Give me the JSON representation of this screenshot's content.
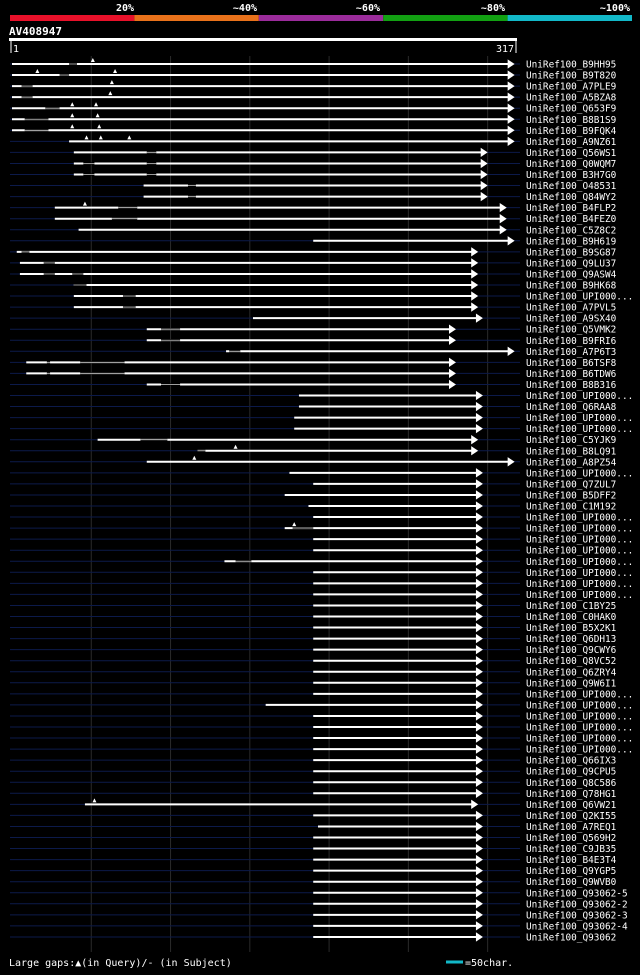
{
  "header": {
    "title": "AV408947",
    "scale_labels": [
      "20%",
      "~40%",
      "~60%",
      "~80%",
      "~100%"
    ],
    "scale_colors": [
      "#e8112a",
      "#e8711a",
      "#9b2c9b",
      "#12a012",
      "#12b8c8"
    ]
  },
  "footer": {
    "gaps_text": "Large gaps:▲(in Query)/- (in Subject)",
    "legend_text": "=50char.",
    "legend_color": "#12b8c8"
  },
  "chart_data": {
    "type": "alignment",
    "query_id": "AV408947",
    "query_length": 317,
    "axis_start": "1",
    "axis_end": "317",
    "hits": [
      {
        "id": "UniRef100_B9HH95",
        "start": 1,
        "end": 317,
        "identity": "80%",
        "gaps": [
          [
            37,
            42
          ]
        ],
        "query_gaps": [
          52
        ]
      },
      {
        "id": "UniRef100_B9T820",
        "start": 1,
        "end": 317,
        "identity": "80%",
        "gaps": [
          [
            31,
            37
          ]
        ],
        "query_gaps": [
          17,
          66
        ]
      },
      {
        "id": "UniRef100_A7PLE9",
        "start": 1,
        "end": 317,
        "identity": "80%",
        "gaps": [
          [
            7,
            14
          ]
        ],
        "query_gaps": [
          64
        ]
      },
      {
        "id": "UniRef100_A5BZA8",
        "start": 1,
        "end": 317,
        "identity": "80%",
        "gaps": [
          [
            7,
            14
          ]
        ],
        "query_gaps": [
          63
        ]
      },
      {
        "id": "UniRef100_Q653F9",
        "start": 1,
        "end": 317,
        "identity": "60%",
        "gaps": [
          [
            22,
            31
          ]
        ],
        "query_gaps": [
          39,
          54
        ]
      },
      {
        "id": "UniRef100_B8B1S9",
        "start": 1,
        "end": 317,
        "identity": "60%",
        "gaps": [
          [
            9,
            24
          ]
        ],
        "query_gaps": [
          39,
          55
        ]
      },
      {
        "id": "UniRef100_B9FQK4",
        "start": 1,
        "end": 317,
        "identity": "60%",
        "gaps": [
          [
            9,
            24
          ]
        ],
        "query_gaps": [
          39,
          56
        ]
      },
      {
        "id": "UniRef100_A9NZ61",
        "start": 37,
        "end": 317,
        "identity": "60%",
        "gaps": [],
        "query_gaps": [
          48,
          57,
          75
        ]
      },
      {
        "id": "UniRef100_Q56WS1",
        "start": 40,
        "end": 300,
        "identity": "80%",
        "gaps": [
          [
            86,
            92
          ]
        ],
        "query_gaps": []
      },
      {
        "id": "UniRef100_Q0WQM7",
        "start": 40,
        "end": 300,
        "identity": "80%",
        "gaps": [
          [
            46,
            53
          ],
          [
            86,
            92
          ]
        ],
        "query_gaps": []
      },
      {
        "id": "UniRef100_B3H7G0",
        "start": 40,
        "end": 300,
        "identity": "80%",
        "gaps": [
          [
            46,
            53
          ],
          [
            86,
            92
          ]
        ],
        "query_gaps": []
      },
      {
        "id": "UniRef100_O48531",
        "start": 84,
        "end": 300,
        "identity": "80%",
        "gaps": [
          [
            112,
            117
          ]
        ],
        "query_gaps": []
      },
      {
        "id": "UniRef100_Q84WY2",
        "start": 84,
        "end": 300,
        "identity": "80%",
        "gaps": [
          [
            112,
            117
          ]
        ],
        "query_gaps": []
      },
      {
        "id": "UniRef100_B4FLP2",
        "start": 28,
        "end": 312,
        "identity": "60%",
        "gaps": [
          [
            68,
            80
          ]
        ],
        "query_gaps": [
          47
        ]
      },
      {
        "id": "UniRef100_B4FEZ0",
        "start": 28,
        "end": 312,
        "identity": "60%",
        "gaps": [
          [
            64,
            80
          ]
        ],
        "query_gaps": []
      },
      {
        "id": "UniRef100_C5Z8C2",
        "start": 43,
        "end": 312,
        "identity": "60%",
        "gaps": [],
        "query_gaps": []
      },
      {
        "id": "UniRef100_B9H619",
        "start": 191,
        "end": 317,
        "identity": "100%",
        "gaps": [],
        "query_gaps": []
      },
      {
        "id": "UniRef100_B9SG87",
        "start": 4,
        "end": 294,
        "identity": "60%",
        "gaps": [
          [
            7,
            12
          ]
        ],
        "query_gaps": []
      },
      {
        "id": "UniRef100_Q9LU37",
        "start": 6,
        "end": 294,
        "identity": "60%",
        "gaps": [
          [
            21,
            28
          ]
        ],
        "query_gaps": []
      },
      {
        "id": "UniRef100_Q9ASW4",
        "start": 6,
        "end": 294,
        "identity": "60%",
        "gaps": [
          [
            21,
            28
          ],
          [
            39,
            46
          ]
        ],
        "query_gaps": []
      },
      {
        "id": "UniRef100_B9HK68",
        "start": 40,
        "end": 294,
        "identity": "60%",
        "gaps": [
          [
            40,
            48
          ]
        ],
        "query_gaps": []
      },
      {
        "id": "UniRef100_UPI000...",
        "start": 40,
        "end": 294,
        "identity": "60%",
        "gaps": [
          [
            71,
            79
          ]
        ],
        "query_gaps": []
      },
      {
        "id": "UniRef100_A7PVL5",
        "start": 40,
        "end": 294,
        "identity": "60%",
        "gaps": [
          [
            71,
            79
          ]
        ],
        "query_gaps": []
      },
      {
        "id": "UniRef100_A9SX40",
        "start": 153,
        "end": 297,
        "identity": "80%",
        "gaps": [],
        "query_gaps": []
      },
      {
        "id": "UniRef100_Q5VMK2",
        "start": 86,
        "end": 280,
        "identity": "60%",
        "gaps": [
          [
            95,
            107
          ]
        ],
        "query_gaps": []
      },
      {
        "id": "UniRef100_B9FRI6",
        "start": 86,
        "end": 280,
        "identity": "60%",
        "gaps": [
          [
            95,
            107
          ]
        ],
        "query_gaps": []
      },
      {
        "id": "UniRef100_A7P6T3",
        "start": 136,
        "end": 317,
        "identity": "80%",
        "gaps": [
          [
            138,
            145
          ]
        ],
        "query_gaps": []
      },
      {
        "id": "UniRef100_B6TSF8",
        "start": 10,
        "end": 280,
        "identity": "60%",
        "gaps": [
          [
            23,
            25
          ],
          [
            44,
            72
          ]
        ],
        "query_gaps": []
      },
      {
        "id": "UniRef100_B6TDW6",
        "start": 10,
        "end": 280,
        "identity": "60%",
        "gaps": [
          [
            23,
            25
          ],
          [
            44,
            72
          ]
        ],
        "query_gaps": []
      },
      {
        "id": "UniRef100_B8B316",
        "start": 86,
        "end": 280,
        "identity": "60%",
        "gaps": [
          [
            95,
            107
          ]
        ],
        "query_gaps": []
      },
      {
        "id": "UniRef100_UPI000...",
        "start": 182,
        "end": 297,
        "identity": "80%",
        "gaps": [],
        "query_gaps": []
      },
      {
        "id": "UniRef100_Q6RAA8",
        "start": 182,
        "end": 297,
        "identity": "80%",
        "gaps": [],
        "query_gaps": []
      },
      {
        "id": "UniRef100_UPI000...",
        "start": 179,
        "end": 297,
        "identity": "80%",
        "gaps": [],
        "query_gaps": []
      },
      {
        "id": "UniRef100_UPI000...",
        "start": 179,
        "end": 297,
        "identity": "80%",
        "gaps": [],
        "query_gaps": []
      },
      {
        "id": "UniRef100_C5YJK9",
        "start": 55,
        "end": 294,
        "identity": "60%",
        "gaps": [
          [
            82,
            99
          ]
        ],
        "query_gaps": []
      },
      {
        "id": "UniRef100_B8LQ91",
        "start": 118,
        "end": 294,
        "identity": "60%",
        "gaps": [
          [
            118,
            123
          ]
        ],
        "query_gaps": [
          142
        ]
      },
      {
        "id": "UniRef100_A8PZ54",
        "start": 86,
        "end": 317,
        "identity": "60%",
        "gaps": [],
        "query_gaps": [
          116
        ]
      },
      {
        "id": "UniRef100_UPI000...",
        "start": 176,
        "end": 297,
        "identity": "100%",
        "gaps": [],
        "query_gaps": []
      },
      {
        "id": "UniRef100_Q7ZUL7",
        "start": 191,
        "end": 297,
        "identity": "100%",
        "gaps": [],
        "query_gaps": []
      },
      {
        "id": "UniRef100_B5DFF2",
        "start": 173,
        "end": 297,
        "identity": "80%",
        "gaps": [],
        "query_gaps": []
      },
      {
        "id": "UniRef100_C1M192",
        "start": 188,
        "end": 297,
        "identity": "100%",
        "gaps": [],
        "query_gaps": []
      },
      {
        "id": "UniRef100_UPI000...",
        "start": 191,
        "end": 297,
        "identity": "100%",
        "gaps": [],
        "query_gaps": []
      },
      {
        "id": "UniRef100_UPI000...",
        "start": 173,
        "end": 297,
        "identity": "80%",
        "gaps": [
          [
            178,
            191
          ]
        ],
        "query_gaps": [
          179
        ]
      },
      {
        "id": "UniRef100_UPI000...",
        "start": 191,
        "end": 297,
        "identity": "100%",
        "gaps": [],
        "query_gaps": []
      },
      {
        "id": "UniRef100_UPI000...",
        "start": 191,
        "end": 297,
        "identity": "100%",
        "gaps": [],
        "query_gaps": []
      },
      {
        "id": "UniRef100_UPI000...",
        "start": 135,
        "end": 297,
        "identity": "80%",
        "gaps": [
          [
            142,
            152
          ]
        ],
        "query_gaps": []
      },
      {
        "id": "UniRef100_UPI000...",
        "start": 191,
        "end": 297,
        "identity": "100%",
        "gaps": [],
        "query_gaps": []
      },
      {
        "id": "UniRef100_UPI000...",
        "start": 191,
        "end": 297,
        "identity": "100%",
        "gaps": [],
        "query_gaps": []
      },
      {
        "id": "UniRef100_UPI000...",
        "start": 191,
        "end": 297,
        "identity": "100%",
        "gaps": [],
        "query_gaps": []
      },
      {
        "id": "UniRef100_C1BY25",
        "start": 191,
        "end": 297,
        "identity": "100%",
        "gaps": [],
        "query_gaps": []
      },
      {
        "id": "UniRef100_C0HAK0",
        "start": 191,
        "end": 297,
        "identity": "100%",
        "gaps": [],
        "query_gaps": []
      },
      {
        "id": "UniRef100_B5X2K1",
        "start": 191,
        "end": 297,
        "identity": "100%",
        "gaps": [],
        "query_gaps": []
      },
      {
        "id": "UniRef100_Q6DH13",
        "start": 191,
        "end": 297,
        "identity": "100%",
        "gaps": [],
        "query_gaps": []
      },
      {
        "id": "UniRef100_Q9CWY6",
        "start": 191,
        "end": 297,
        "identity": "100%",
        "gaps": [],
        "query_gaps": []
      },
      {
        "id": "UniRef100_Q8VC52",
        "start": 191,
        "end": 297,
        "identity": "100%",
        "gaps": [],
        "query_gaps": []
      },
      {
        "id": "UniRef100_Q6ZRY4",
        "start": 191,
        "end": 297,
        "identity": "100%",
        "gaps": [],
        "query_gaps": []
      },
      {
        "id": "UniRef100_Q9W6I1",
        "start": 191,
        "end": 297,
        "identity": "100%",
        "gaps": [],
        "query_gaps": []
      },
      {
        "id": "UniRef100_UPI000...",
        "start": 191,
        "end": 297,
        "identity": "100%",
        "gaps": [],
        "query_gaps": []
      },
      {
        "id": "UniRef100_UPI000...",
        "start": 161,
        "end": 297,
        "identity": "80%",
        "gaps": [],
        "query_gaps": []
      },
      {
        "id": "UniRef100_UPI000...",
        "start": 191,
        "end": 297,
        "identity": "100%",
        "gaps": [],
        "query_gaps": []
      },
      {
        "id": "UniRef100_UPI000...",
        "start": 191,
        "end": 297,
        "identity": "100%",
        "gaps": [],
        "query_gaps": []
      },
      {
        "id": "UniRef100_UPI000...",
        "start": 191,
        "end": 297,
        "identity": "100%",
        "gaps": [],
        "query_gaps": []
      },
      {
        "id": "UniRef100_UPI000...",
        "start": 191,
        "end": 297,
        "identity": "100%",
        "gaps": [],
        "query_gaps": []
      },
      {
        "id": "UniRef100_Q66IX3",
        "start": 191,
        "end": 297,
        "identity": "100%",
        "gaps": [],
        "query_gaps": []
      },
      {
        "id": "UniRef100_Q9CPU5",
        "start": 191,
        "end": 297,
        "identity": "100%",
        "gaps": [],
        "query_gaps": []
      },
      {
        "id": "UniRef100_Q8C586",
        "start": 191,
        "end": 297,
        "identity": "100%",
        "gaps": [],
        "query_gaps": []
      },
      {
        "id": "UniRef100_Q78HG1",
        "start": 191,
        "end": 297,
        "identity": "100%",
        "gaps": [],
        "query_gaps": []
      },
      {
        "id": "UniRef100_Q6VW21",
        "start": 47,
        "end": 294,
        "identity": "60%",
        "gaps": [],
        "query_gaps": [
          53
        ]
      },
      {
        "id": "UniRef100_Q2KI55",
        "start": 191,
        "end": 297,
        "identity": "100%",
        "gaps": [],
        "query_gaps": []
      },
      {
        "id": "UniRef100_A7REQ1",
        "start": 194,
        "end": 297,
        "identity": "100%",
        "gaps": [],
        "query_gaps": []
      },
      {
        "id": "UniRef100_Q569H2",
        "start": 191,
        "end": 297,
        "identity": "100%",
        "gaps": [],
        "query_gaps": []
      },
      {
        "id": "UniRef100_C9JB35",
        "start": 191,
        "end": 297,
        "identity": "100%",
        "gaps": [],
        "query_gaps": []
      },
      {
        "id": "UniRef100_B4E3T4",
        "start": 191,
        "end": 297,
        "identity": "100%",
        "gaps": [],
        "query_gaps": []
      },
      {
        "id": "UniRef100_Q9YGP5",
        "start": 191,
        "end": 297,
        "identity": "100%",
        "gaps": [],
        "query_gaps": []
      },
      {
        "id": "UniRef100_Q9WVB0",
        "start": 191,
        "end": 297,
        "identity": "100%",
        "gaps": [],
        "query_gaps": []
      },
      {
        "id": "UniRef100_Q93062-5",
        "start": 191,
        "end": 297,
        "identity": "100%",
        "gaps": [],
        "query_gaps": []
      },
      {
        "id": "UniRef100_Q93062-2",
        "start": 191,
        "end": 297,
        "identity": "100%",
        "gaps": [],
        "query_gaps": []
      },
      {
        "id": "UniRef100_Q93062-3",
        "start": 191,
        "end": 297,
        "identity": "100%",
        "gaps": [],
        "query_gaps": []
      },
      {
        "id": "UniRef100_Q93062-4",
        "start": 191,
        "end": 297,
        "identity": "100%",
        "gaps": [],
        "query_gaps": []
      },
      {
        "id": "UniRef100_Q93062",
        "start": 191,
        "end": 297,
        "identity": "100%",
        "gaps": [],
        "query_gaps": []
      }
    ]
  }
}
